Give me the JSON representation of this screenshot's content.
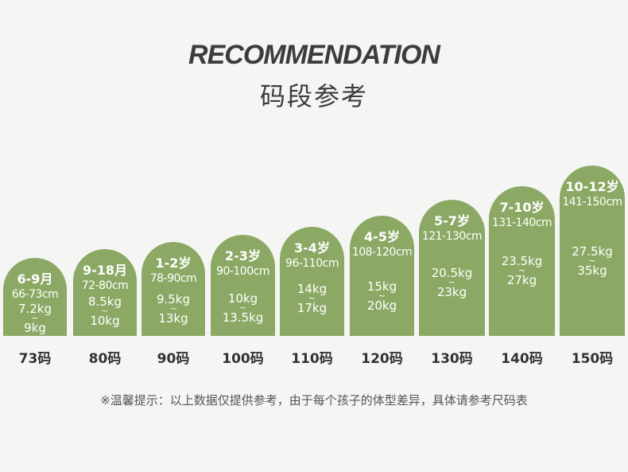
{
  "title_en": "RECOMMENDATION",
  "title_cn": "码段参考",
  "sizes": [
    {
      "age": "6-9月",
      "height": "66-73cm",
      "weight_min": "7.2kg",
      "weight_sep": "~",
      "weight_max": "9kg",
      "size": "73码"
    },
    {
      "age": "9-18月",
      "height": "72-80cm",
      "weight_min": "8.5kg",
      "weight_sep": "~",
      "weight_max": "10kg",
      "size": "80码"
    },
    {
      "age": "1-2岁",
      "height": "78-90cm",
      "weight_min": "9.5kg",
      "weight_sep": "~",
      "weight_max": "13kg",
      "size": "90码"
    },
    {
      "age": "2-3岁",
      "height": "90-100cm",
      "weight_min": "10kg",
      "weight_sep": "~",
      "weight_max": "13.5kg",
      "size": "100码"
    },
    {
      "age": "3-4岁",
      "height": "96-110cm",
      "weight_min": "14kg",
      "weight_sep": "~",
      "weight_max": "17kg",
      "size": "110码"
    },
    {
      "age": "4-5岁",
      "height": "108-120cm",
      "weight_min": "15kg",
      "weight_sep": "~",
      "weight_max": "20kg",
      "size": "120码"
    },
    {
      "age": "5-7岁",
      "height": "121-130cm",
      "weight_min": "20.5kg",
      "weight_sep": "~",
      "weight_max": "23kg",
      "size": "130码"
    },
    {
      "age": "7-10岁",
      "height": "131-140cm",
      "weight_min": "23.5kg",
      "weight_sep": "~",
      "weight_max": "27kg",
      "size": "140码"
    },
    {
      "age": "10-12岁",
      "height": "141-150cm",
      "weight_min": "27.5kg",
      "weight_sep": "~",
      "weight_max": "35kg",
      "size": "150码"
    }
  ],
  "note": "※温馨提示：以上数据仅提供参考，由于每个孩子的体型差异，具体请参考尺码表",
  "colors": {
    "bar": "#8ba964",
    "background": "#f5f5f3",
    "text": "#3c3c3c"
  }
}
